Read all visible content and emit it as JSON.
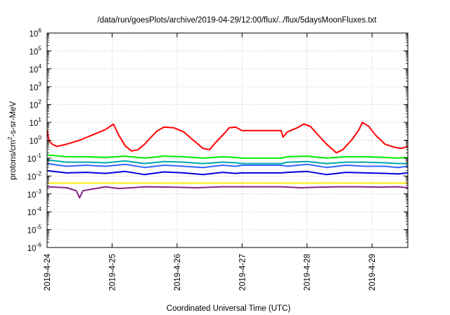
{
  "chart_data": {
    "type": "line",
    "title": "/data/run/goesPlots/archive/2019-04-29/12:00/flux/../flux/5daysMoonFluxes.txt",
    "xlabel": "Coordinated Universal Time (UTC)",
    "ylabel": {
      "pre": "protons/cm",
      "sup": "2",
      "post": "-s-sr-MeV"
    },
    "yscale": "log",
    "ylim_exp": [
      -6,
      6
    ],
    "ytick_labels": [
      {
        "base": "10",
        "exp": "-6"
      },
      {
        "base": "10",
        "exp": "-5"
      },
      {
        "base": "10",
        "exp": "-4"
      },
      {
        "base": "10",
        "exp": "-3"
      },
      {
        "base": "10",
        "exp": "-2"
      },
      {
        "base": "10",
        "exp": "-1"
      },
      {
        "base": "10",
        "exp": "0"
      },
      {
        "base": "10",
        "exp": "1"
      },
      {
        "base": "10",
        "exp": "2"
      },
      {
        "base": "10",
        "exp": "3"
      },
      {
        "base": "10",
        "exp": "4"
      },
      {
        "base": "10",
        "exp": "5"
      },
      {
        "base": "10",
        "exp": "6"
      }
    ],
    "x_range_days": [
      0,
      5.55
    ],
    "xtick_labels": [
      "2019-4-24",
      "2019-4-25",
      "2019-4-26",
      "2019-4-27",
      "2019-4-28",
      "2019-4-29"
    ],
    "grid": true,
    "series": [
      {
        "color": "#ff0000",
        "x": [
          0,
          0.03,
          0.08,
          0.15,
          0.3,
          0.5,
          0.7,
          0.9,
          0.97,
          1.02,
          1.1,
          1.2,
          1.3,
          1.4,
          1.5,
          1.6,
          1.7,
          1.8,
          1.95,
          2.1,
          2.25,
          2.4,
          2.5,
          2.6,
          2.75,
          2.8,
          2.9,
          3.0,
          3.6,
          3.63,
          3.7,
          3.85,
          3.95,
          4.05,
          4.2,
          4.3,
          4.45,
          4.55,
          4.7,
          4.8,
          4.85,
          4.95,
          5.05,
          5.2,
          5.35,
          5.45,
          5.55
        ],
        "y": [
          3.5,
          0.9,
          0.6,
          0.45,
          0.6,
          1.0,
          2.0,
          4.0,
          6.0,
          8.0,
          2.0,
          0.5,
          0.25,
          0.3,
          0.6,
          1.5,
          3.5,
          5.5,
          5.0,
          3.0,
          1.0,
          0.35,
          0.3,
          0.8,
          3.0,
          5.0,
          5.5,
          3.5,
          3.5,
          1.5,
          3.0,
          5.0,
          8.0,
          6.0,
          1.5,
          0.6,
          0.2,
          0.3,
          1.2,
          4.0,
          10.0,
          6.0,
          2.0,
          0.6,
          0.4,
          0.35,
          0.45
        ]
      },
      {
        "color": "#00ee00",
        "x": [
          0,
          0.3,
          0.6,
          0.9,
          1.2,
          1.5,
          1.8,
          2.1,
          2.4,
          2.7,
          2.9,
          3.0,
          3.6,
          3.7,
          4.0,
          4.3,
          4.6,
          4.9,
          5.2,
          5.4,
          5.55
        ],
        "y": [
          0.15,
          0.12,
          0.12,
          0.11,
          0.13,
          0.1,
          0.13,
          0.12,
          0.1,
          0.12,
          0.11,
          0.1,
          0.1,
          0.12,
          0.13,
          0.1,
          0.12,
          0.12,
          0.11,
          0.1,
          0.11
        ]
      },
      {
        "color": "#00aaaa",
        "x": [
          0,
          0.3,
          0.6,
          0.9,
          1.2,
          1.5,
          1.8,
          2.1,
          2.4,
          2.7,
          2.9,
          3.0,
          3.6,
          3.7,
          4.0,
          4.3,
          4.6,
          4.9,
          5.2,
          5.4,
          5.55
        ],
        "y": [
          0.08,
          0.06,
          0.06,
          0.055,
          0.07,
          0.05,
          0.065,
          0.06,
          0.05,
          0.06,
          0.055,
          0.05,
          0.05,
          0.06,
          0.065,
          0.05,
          0.06,
          0.06,
          0.055,
          0.05,
          0.05
        ]
      },
      {
        "color": "#3366ff",
        "x": [
          0,
          0.3,
          0.6,
          0.9,
          1.2,
          1.5,
          1.8,
          2.1,
          2.4,
          2.7,
          2.9,
          3.0,
          3.6,
          3.7,
          4.0,
          4.3,
          4.6,
          4.9,
          5.2,
          5.4,
          5.55
        ],
        "y": [
          0.05,
          0.035,
          0.04,
          0.035,
          0.045,
          0.03,
          0.04,
          0.035,
          0.03,
          0.04,
          0.035,
          0.04,
          0.04,
          0.035,
          0.045,
          0.03,
          0.04,
          0.035,
          0.035,
          0.03,
          0.035
        ]
      },
      {
        "color": "#0000dd",
        "x": [
          0,
          0.3,
          0.6,
          0.9,
          1.2,
          1.5,
          1.8,
          2.1,
          2.4,
          2.7,
          2.9,
          3.0,
          3.6,
          3.7,
          4.0,
          4.3,
          4.6,
          4.9,
          5.2,
          5.4,
          5.55
        ],
        "y": [
          0.02,
          0.015,
          0.016,
          0.014,
          0.018,
          0.012,
          0.017,
          0.015,
          0.012,
          0.016,
          0.014,
          0.015,
          0.015,
          0.016,
          0.018,
          0.012,
          0.016,
          0.015,
          0.014,
          0.013,
          0.015
        ]
      },
      {
        "color": "#ffee00",
        "x": [
          0,
          5.55
        ],
        "y": [
          0.004,
          0.004
        ]
      },
      {
        "color": "#882288",
        "x": [
          0,
          0.3,
          0.45,
          0.5,
          0.55,
          0.9,
          1.1,
          1.3,
          1.5,
          1.9,
          2.3,
          2.7,
          3.0,
          3.6,
          3.9,
          4.2,
          4.5,
          4.8,
          5.1,
          5.4,
          5.55
        ],
        "y": [
          0.0025,
          0.0022,
          0.0015,
          0.0006,
          0.0015,
          0.0025,
          0.002,
          0.0022,
          0.0025,
          0.0024,
          0.0022,
          0.0025,
          0.0025,
          0.0025,
          0.0022,
          0.0024,
          0.0025,
          0.0025,
          0.0024,
          0.0025,
          0.0022
        ]
      }
    ]
  }
}
